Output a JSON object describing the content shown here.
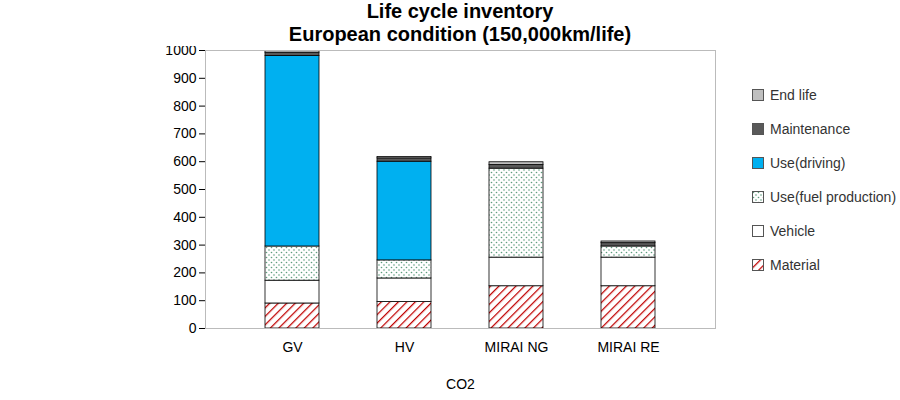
{
  "chart_data": {
    "type": "bar",
    "title": "Life cycle inventory",
    "subtitle": "European condition (150,000km/life)",
    "x_label": "CO2",
    "categories": [
      "GV",
      "HV",
      "MIRAI NG",
      "MIRAI RE"
    ],
    "stacked": true,
    "legend": "right",
    "grid": false,
    "ylim": [
      0,
      1000
    ],
    "yticks": [
      0,
      100,
      200,
      300,
      400,
      500,
      600,
      700,
      800,
      900,
      1000
    ],
    "series": [
      {
        "name": "Material",
        "color": "#c00000",
        "values": [
          90,
          95,
          152,
          152
        ]
      },
      {
        "name": "Vehicle",
        "color": "#ffffff",
        "values": [
          82,
          85,
          103,
          103
        ]
      },
      {
        "name": "Use(fuel production)",
        "color": "#5e9e7e",
        "values": [
          123,
          65,
          320,
          40
        ]
      },
      {
        "name": "Use(driving)",
        "color": "#00b0f0",
        "values": [
          685,
          355,
          0,
          0
        ]
      },
      {
        "name": "Maintenance",
        "color": "#595959",
        "values": [
          12,
          12,
          13,
          12
        ]
      },
      {
        "name": "End life",
        "color": "#bfbfbf",
        "values": [
          8,
          5,
          10,
          6
        ]
      }
    ]
  }
}
